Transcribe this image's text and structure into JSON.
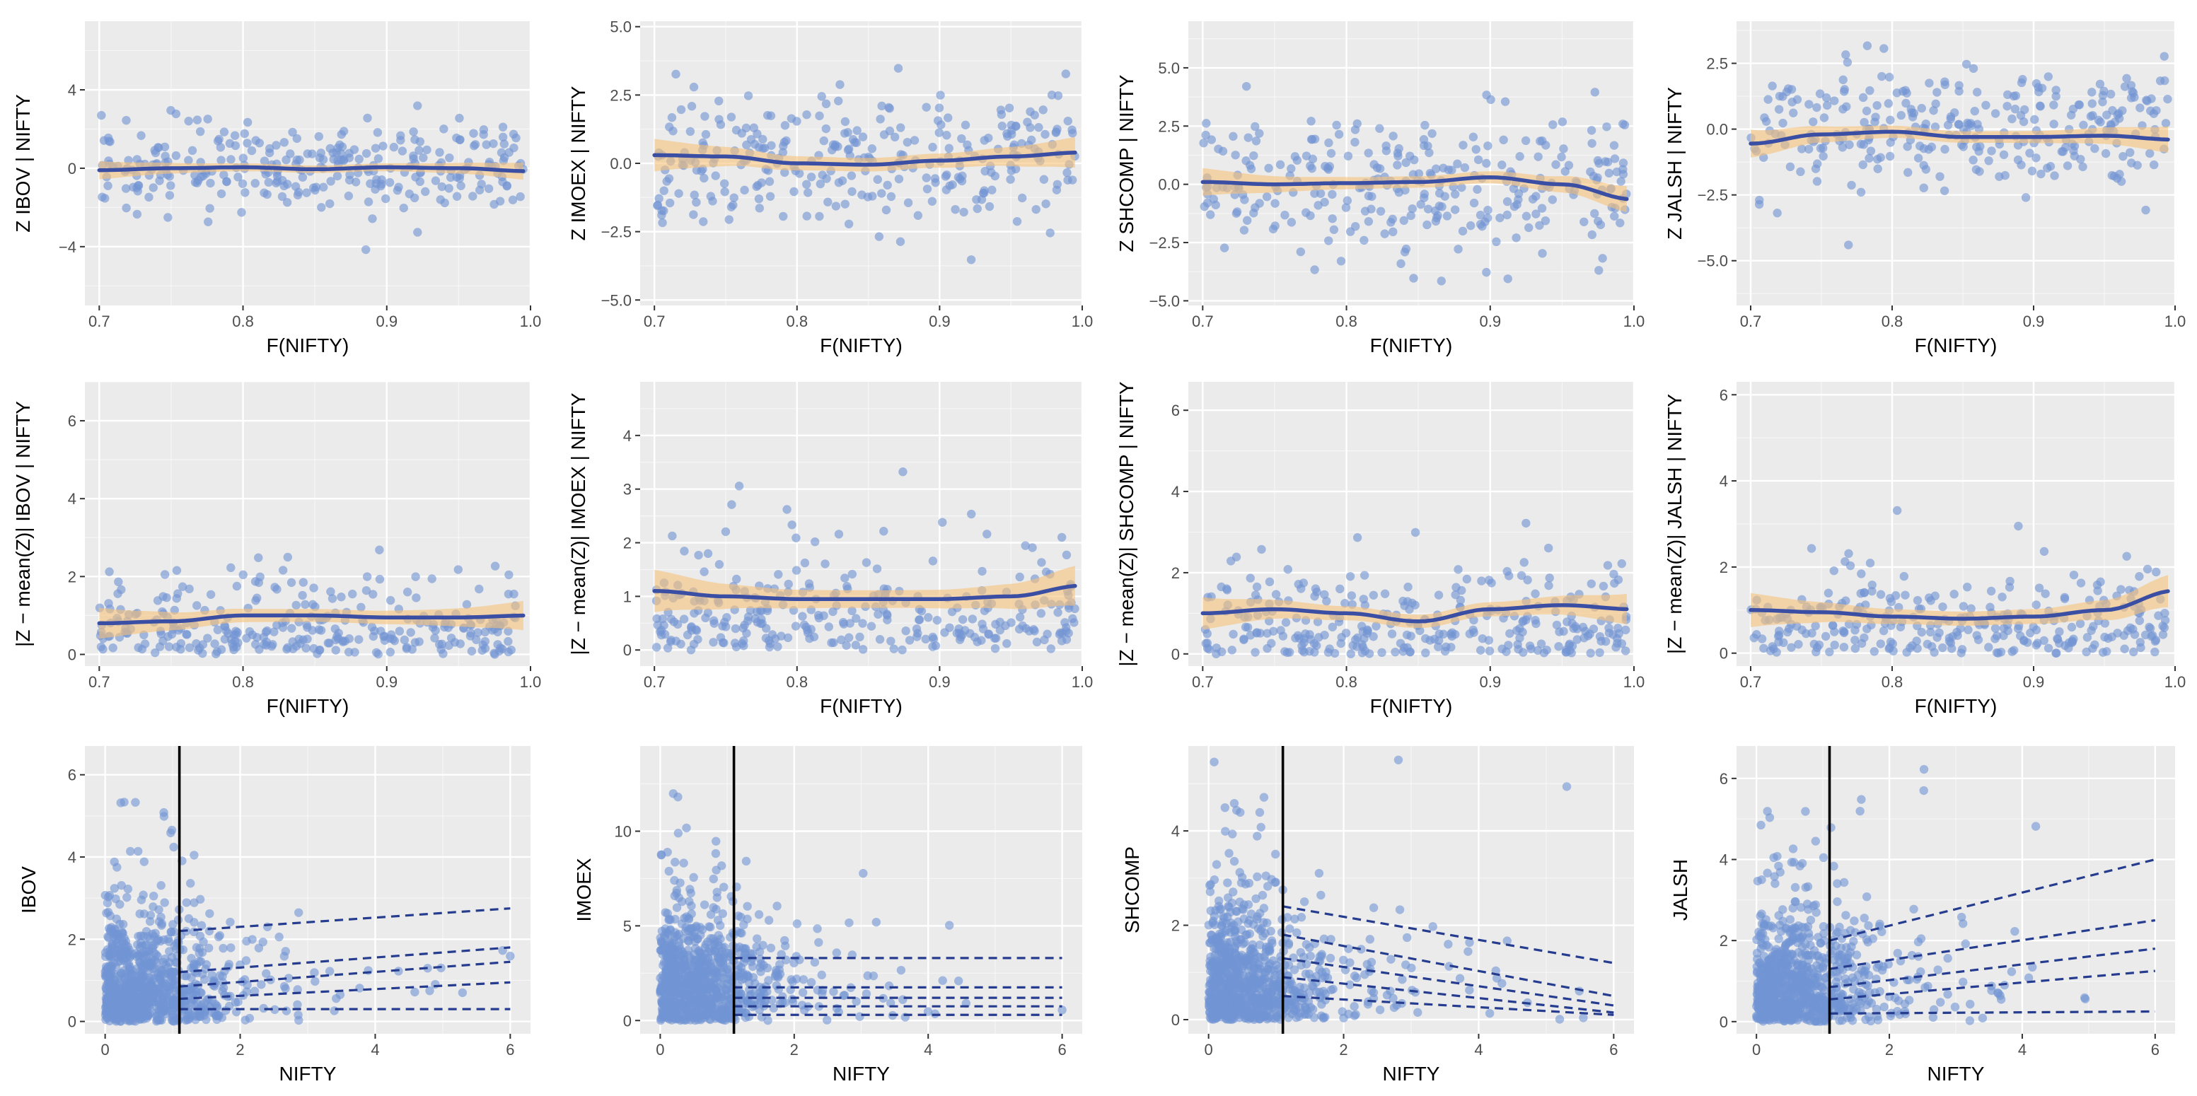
{
  "colors": {
    "panel_bg": "#ebebeb",
    "grid_major": "#ffffff",
    "points": "#7294d4",
    "smooth_line": "#3a4ea3",
    "ribbon": "#f6c27a",
    "dashed": "#253c8f",
    "vline": "#000000"
  },
  "chart_data": [
    {
      "id": "r1c1",
      "type": "scatter",
      "smooth": "loess",
      "xlabel": "F(NIFTY)",
      "ylabel": "Z  IBOV | NIFTY",
      "xlim": [
        0.69,
        1.0
      ],
      "ylim": [
        -7,
        7.5
      ],
      "xticks": [
        0.7,
        0.8,
        0.9,
        1.0
      ],
      "xtick_labels": [
        "0.7",
        "0.8",
        "0.9",
        "1.0"
      ],
      "yticks": [
        -4,
        0,
        4
      ],
      "ytick_labels": [
        "−4",
        "0",
        "4"
      ],
      "smooth_values": [
        [
          0.7,
          -0.1
        ],
        [
          0.75,
          0.0
        ],
        [
          0.8,
          0.05
        ],
        [
          0.85,
          -0.05
        ],
        [
          0.9,
          0.05
        ],
        [
          0.95,
          0.0
        ],
        [
          1.0,
          -0.15
        ]
      ],
      "band_halfwidth": 0.35,
      "points_params": {
        "n": 300,
        "sd": 1.1,
        "maxabs": 6.6,
        "seed": 11
      }
    },
    {
      "id": "r1c2",
      "type": "scatter",
      "smooth": "loess",
      "xlabel": "F(NIFTY)",
      "ylabel": "Z  IMOEX | NIFTY",
      "xlim": [
        0.69,
        1.0
      ],
      "ylim": [
        -5.2,
        5.2
      ],
      "xticks": [
        0.7,
        0.8,
        0.9,
        1.0
      ],
      "xtick_labels": [
        "0.7",
        "0.8",
        "0.9",
        "1.0"
      ],
      "yticks": [
        -5,
        -2.5,
        0,
        2.5,
        5
      ],
      "ytick_labels": [
        "−5.0",
        "−2.5",
        "0.0",
        "2.5",
        "5.0"
      ],
      "smooth_values": [
        [
          0.7,
          0.3
        ],
        [
          0.75,
          0.25
        ],
        [
          0.8,
          0.0
        ],
        [
          0.85,
          -0.05
        ],
        [
          0.9,
          0.1
        ],
        [
          0.95,
          0.25
        ],
        [
          1.0,
          0.4
        ]
      ],
      "band_halfwidth": 0.45,
      "points_params": {
        "n": 300,
        "sd": 1.2,
        "maxabs": 4.7,
        "seed": 23
      }
    },
    {
      "id": "r1c3",
      "type": "scatter",
      "smooth": "loess",
      "xlabel": "F(NIFTY)",
      "ylabel": "Z  SHCOMP | NIFTY",
      "xlim": [
        0.69,
        1.0
      ],
      "ylim": [
        -5.2,
        7.0
      ],
      "xticks": [
        0.7,
        0.8,
        0.9,
        1.0
      ],
      "xtick_labels": [
        "0.7",
        "0.8",
        "0.9",
        "1.0"
      ],
      "yticks": [
        -5,
        -2.5,
        0,
        2.5,
        5
      ],
      "ytick_labels": [
        "−5.0",
        "−2.5",
        "0.0",
        "2.5",
        "5.0"
      ],
      "smooth_values": [
        [
          0.7,
          0.1
        ],
        [
          0.75,
          0.0
        ],
        [
          0.8,
          0.05
        ],
        [
          0.85,
          0.1
        ],
        [
          0.9,
          0.3
        ],
        [
          0.95,
          0.0
        ],
        [
          1.0,
          -0.65
        ]
      ],
      "band_halfwidth": 0.45,
      "points_params": {
        "n": 300,
        "sd": 1.5,
        "maxabs": 6.4,
        "seed": 37
      }
    },
    {
      "id": "r1c4",
      "type": "scatter",
      "smooth": "loess",
      "xlabel": "F(NIFTY)",
      "ylabel": "Z  JALSH | NIFTY",
      "xlim": [
        0.69,
        1.0
      ],
      "ylim": [
        -6.7,
        4.1
      ],
      "xticks": [
        0.7,
        0.8,
        0.9,
        1.0
      ],
      "xtick_labels": [
        "0.7",
        "0.8",
        "0.9",
        "1.0"
      ],
      "yticks": [
        -5,
        -2.5,
        0,
        2.5
      ],
      "ytick_labels": [
        "−5.0",
        "−2.5",
        "0.0",
        "2.5"
      ],
      "smooth_values": [
        [
          0.7,
          -0.55
        ],
        [
          0.75,
          -0.2
        ],
        [
          0.8,
          -0.1
        ],
        [
          0.85,
          -0.3
        ],
        [
          0.9,
          -0.3
        ],
        [
          0.95,
          -0.25
        ],
        [
          1.0,
          -0.4
        ]
      ],
      "band_halfwidth": 0.4,
      "points_params": {
        "n": 300,
        "sd": 1.2,
        "maxabs": 6.2,
        "seed": 41
      }
    },
    {
      "id": "r2c1",
      "type": "scatter",
      "smooth": "loess",
      "abs": true,
      "xlabel": "F(NIFTY)",
      "ylabel": "|Z − mean(Z)|   IBOV | NIFTY",
      "xlim": [
        0.69,
        1.0
      ],
      "ylim": [
        -0.3,
        7.0
      ],
      "xticks": [
        0.7,
        0.8,
        0.9,
        1.0
      ],
      "xtick_labels": [
        "0.7",
        "0.8",
        "0.9",
        "1.0"
      ],
      "yticks": [
        0,
        2,
        4,
        6
      ],
      "ytick_labels": [
        "0",
        "2",
        "4",
        "6"
      ],
      "smooth_values": [
        [
          0.7,
          0.8
        ],
        [
          0.75,
          0.85
        ],
        [
          0.8,
          1.0
        ],
        [
          0.85,
          1.0
        ],
        [
          0.9,
          0.95
        ],
        [
          0.95,
          0.95
        ],
        [
          1.0,
          1.0
        ]
      ],
      "band_halfwidth": 0.3,
      "points_params": {
        "n": 300,
        "sd": 1.1,
        "maxabs": 6.7,
        "seed": 53
      }
    },
    {
      "id": "r2c2",
      "type": "scatter",
      "smooth": "loess",
      "abs": true,
      "xlabel": "F(NIFTY)",
      "ylabel": "|Z − mean(Z)|   IMOEX | NIFTY",
      "xlim": [
        0.69,
        1.0
      ],
      "ylim": [
        -0.3,
        5.0
      ],
      "xticks": [
        0.7,
        0.8,
        0.9,
        1.0
      ],
      "xtick_labels": [
        "0.7",
        "0.8",
        "0.9",
        "1.0"
      ],
      "yticks": [
        0,
        1,
        2,
        3,
        4
      ],
      "ytick_labels": [
        "0",
        "1",
        "2",
        "3",
        "4"
      ],
      "smooth_values": [
        [
          0.7,
          1.1
        ],
        [
          0.75,
          1.0
        ],
        [
          0.8,
          0.95
        ],
        [
          0.85,
          0.95
        ],
        [
          0.9,
          0.95
        ],
        [
          0.95,
          1.0
        ],
        [
          1.0,
          1.2
        ]
      ],
      "band_halfwidth": 0.3,
      "points_params": {
        "n": 300,
        "sd": 1.1,
        "maxabs": 4.8,
        "seed": 67
      }
    },
    {
      "id": "r2c3",
      "type": "scatter",
      "smooth": "loess",
      "abs": true,
      "xlabel": "F(NIFTY)",
      "ylabel": "|Z − mean(Z)|   SHCOMP | NIFTY",
      "xlim": [
        0.69,
        1.0
      ],
      "ylim": [
        -0.3,
        6.7
      ],
      "xticks": [
        0.7,
        0.8,
        0.9,
        1.0
      ],
      "xtick_labels": [
        "0.7",
        "0.8",
        "0.9",
        "1.0"
      ],
      "yticks": [
        0,
        2,
        4,
        6
      ],
      "ytick_labels": [
        "0",
        "2",
        "4",
        "6"
      ],
      "smooth_values": [
        [
          0.7,
          1.0
        ],
        [
          0.75,
          1.1
        ],
        [
          0.8,
          1.0
        ],
        [
          0.85,
          0.8
        ],
        [
          0.9,
          1.1
        ],
        [
          0.95,
          1.2
        ],
        [
          1.0,
          1.1
        ]
      ],
      "band_halfwidth": 0.3,
      "points_params": {
        "n": 300,
        "sd": 1.2,
        "maxabs": 6.4,
        "seed": 79
      }
    },
    {
      "id": "r2c4",
      "type": "scatter",
      "smooth": "loess",
      "abs": true,
      "xlabel": "F(NIFTY)",
      "ylabel": "|Z − mean(Z)|   JALSH | NIFTY",
      "xlim": [
        0.69,
        1.0
      ],
      "ylim": [
        -0.3,
        6.3
      ],
      "xticks": [
        0.7,
        0.8,
        0.9,
        1.0
      ],
      "xtick_labels": [
        "0.7",
        "0.8",
        "0.9",
        "1.0"
      ],
      "yticks": [
        0,
        2,
        4,
        6
      ],
      "ytick_labels": [
        "0",
        "2",
        "4",
        "6"
      ],
      "smooth_values": [
        [
          0.7,
          1.0
        ],
        [
          0.75,
          0.95
        ],
        [
          0.8,
          0.85
        ],
        [
          0.85,
          0.8
        ],
        [
          0.9,
          0.85
        ],
        [
          0.95,
          1.0
        ],
        [
          1.0,
          1.45
        ]
      ],
      "band_halfwidth": 0.3,
      "points_params": {
        "n": 300,
        "sd": 1.1,
        "maxabs": 6.0,
        "seed": 83
      }
    },
    {
      "id": "r3c1",
      "type": "scatter",
      "vline": 1.1,
      "xlabel": "NIFTY",
      "ylabel": "IBOV",
      "xlim": [
        -0.3,
        6.3
      ],
      "ylim": [
        -0.3,
        6.7
      ],
      "xticks": [
        0,
        2,
        4,
        6
      ],
      "xtick_labels": [
        "0",
        "2",
        "4",
        "6"
      ],
      "yticks": [
        0,
        2,
        4,
        6
      ],
      "ytick_labels": [
        "0",
        "2",
        "4",
        "6"
      ],
      "dashed_lines": [
        [
          [
            1.1,
            0.3
          ],
          [
            6.0,
            0.3
          ]
        ],
        [
          [
            1.1,
            0.55
          ],
          [
            6.0,
            0.95
          ]
        ],
        [
          [
            1.1,
            0.85
          ],
          [
            6.0,
            1.45
          ]
        ],
        [
          [
            1.1,
            1.2
          ],
          [
            6.0,
            1.8
          ]
        ],
        [
          [
            1.1,
            2.2
          ],
          [
            6.0,
            2.75
          ]
        ]
      ],
      "points_params": {
        "n": 900,
        "ymax": 6.3,
        "seed": 97
      }
    },
    {
      "id": "r3c2",
      "type": "scatter",
      "vline": 1.1,
      "xlabel": "NIFTY",
      "ylabel": "IMOEX",
      "xlim": [
        -0.3,
        6.3
      ],
      "ylim": [
        -0.7,
        14.5
      ],
      "xticks": [
        0,
        2,
        4,
        6
      ],
      "xtick_labels": [
        "0",
        "2",
        "4",
        "6"
      ],
      "yticks": [
        0,
        5,
        10
      ],
      "ytick_labels": [
        "0",
        "5",
        "10"
      ],
      "dashed_lines": [
        [
          [
            1.1,
            0.3
          ],
          [
            6.0,
            0.3
          ]
        ],
        [
          [
            1.1,
            0.75
          ],
          [
            6.0,
            0.75
          ]
        ],
        [
          [
            1.1,
            1.2
          ],
          [
            6.0,
            1.2
          ]
        ],
        [
          [
            1.1,
            1.75
          ],
          [
            6.0,
            1.75
          ]
        ],
        [
          [
            1.1,
            3.3
          ],
          [
            6.0,
            3.3
          ]
        ]
      ],
      "points_params": {
        "n": 900,
        "ymax": 14,
        "seed": 101
      }
    },
    {
      "id": "r3c3",
      "type": "scatter",
      "vline": 1.1,
      "xlabel": "NIFTY",
      "ylabel": "SHCOMP",
      "xlim": [
        -0.3,
        6.3
      ],
      "ylim": [
        -0.3,
        5.8
      ],
      "xticks": [
        0,
        2,
        4,
        6
      ],
      "xtick_labels": [
        "0",
        "2",
        "4",
        "6"
      ],
      "yticks": [
        0,
        2,
        4
      ],
      "ytick_labels": [
        "0",
        "2",
        "4"
      ],
      "dashed_lines": [
        [
          [
            1.1,
            0.5
          ],
          [
            6.0,
            0.1
          ]
        ],
        [
          [
            1.1,
            0.9
          ],
          [
            6.0,
            0.15
          ]
        ],
        [
          [
            1.1,
            1.3
          ],
          [
            6.0,
            0.3
          ]
        ],
        [
          [
            1.1,
            1.8
          ],
          [
            6.0,
            0.5
          ]
        ],
        [
          [
            1.1,
            2.4
          ],
          [
            6.0,
            1.2
          ]
        ]
      ],
      "points_params": {
        "n": 900,
        "ymax": 5.6,
        "seed": 113
      }
    },
    {
      "id": "r3c4",
      "type": "scatter",
      "vline": 1.1,
      "xlabel": "NIFTY",
      "ylabel": "JALSH",
      "xlim": [
        -0.3,
        6.3
      ],
      "ylim": [
        -0.3,
        6.8
      ],
      "xticks": [
        0,
        2,
        4,
        6
      ],
      "xtick_labels": [
        "0",
        "2",
        "4",
        "6"
      ],
      "yticks": [
        0,
        2,
        4,
        6
      ],
      "ytick_labels": [
        "0",
        "2",
        "4",
        "6"
      ],
      "dashed_lines": [
        [
          [
            1.1,
            0.2
          ],
          [
            6.0,
            0.25
          ]
        ],
        [
          [
            1.1,
            0.55
          ],
          [
            6.0,
            1.25
          ]
        ],
        [
          [
            1.1,
            0.85
          ],
          [
            6.0,
            1.8
          ]
        ],
        [
          [
            1.1,
            1.3
          ],
          [
            6.0,
            2.5
          ]
        ],
        [
          [
            1.1,
            2.0
          ],
          [
            6.0,
            4.0
          ]
        ]
      ],
      "points_params": {
        "n": 900,
        "ymax": 6.5,
        "seed": 127
      }
    }
  ]
}
